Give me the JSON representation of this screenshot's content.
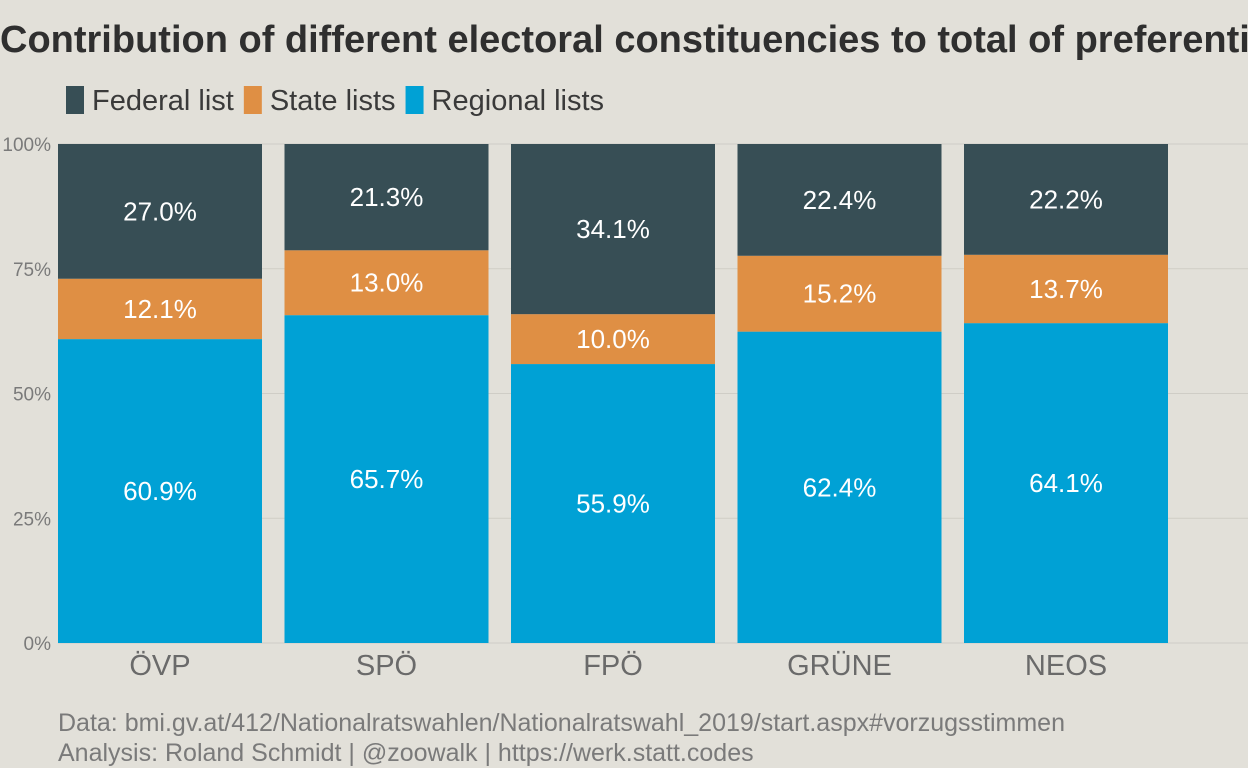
{
  "chart_data": {
    "type": "bar",
    "stacked": true,
    "title": "Contribution of different electoral constituencies to total of preferential votes",
    "categories": [
      "ÖVP",
      "SPÖ",
      "FPÖ",
      "GRÜNE",
      "NEOS"
    ],
    "series": [
      {
        "name": "Regional lists",
        "color": "#00a1d5",
        "values": [
          60.9,
          65.7,
          55.9,
          62.4,
          64.1
        ]
      },
      {
        "name": "State lists",
        "color": "#df8f44",
        "values": [
          12.1,
          13.0,
          10.0,
          15.2,
          13.7
        ]
      },
      {
        "name": "Federal list",
        "color": "#374e55",
        "values": [
          27.0,
          21.3,
          34.1,
          22.4,
          22.2
        ]
      }
    ],
    "legend_order": [
      "Federal list",
      "State lists",
      "Regional lists"
    ],
    "legend_position": "top-left",
    "ylim": [
      0,
      100
    ],
    "yticks": [
      0,
      25,
      50,
      75,
      100
    ],
    "ytick_labels": [
      "0%",
      "25%",
      "50%",
      "75%",
      "100%"
    ],
    "grid": true,
    "xlabel": "",
    "ylabel": ""
  },
  "caption": {
    "line1": "Data: bmi.gv.at/412/Nationalratswahlen/Nationalratswahl_2019/start.aspx#vorzugsstimmen",
    "line2": "Analysis: Roland Schmidt | @zoowalk | https://werk.statt.codes"
  }
}
